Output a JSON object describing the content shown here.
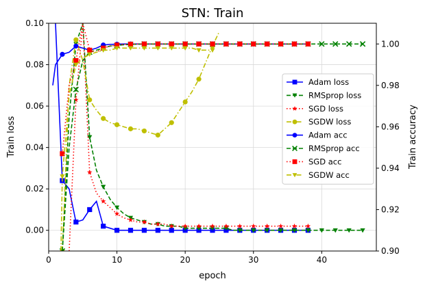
{
  "chart_data": {
    "type": "line",
    "title": "STN: Train",
    "xlabel": "epoch",
    "ylabel_left": "Train loss",
    "ylabel_right": "Train accuracy",
    "xlim": [
      0,
      48
    ],
    "ylim_left": [
      -0.01,
      0.1
    ],
    "ylim_right": [
      0.9,
      1.01
    ],
    "x_ticks": [
      0,
      10,
      20,
      30,
      40
    ],
    "y_left_ticks": [
      0.0,
      0.02,
      0.04,
      0.06,
      0.08,
      0.1
    ],
    "y_left_tick_labels": [
      "0.00",
      "0.02",
      "0.04",
      "0.06",
      "0.08",
      "0.10"
    ],
    "y_right_ticks": [
      0.9,
      0.92,
      0.94,
      0.96,
      0.98,
      1.0
    ],
    "y_right_tick_labels": [
      "0.90",
      "0.92",
      "0.94",
      "0.96",
      "0.98",
      "1.00"
    ],
    "grid": true,
    "legend_position": "right",
    "series": [
      {
        "name": "Adam loss",
        "axis": "left",
        "color": "#0000ff",
        "dash": "solid",
        "marker": "square",
        "marker_every": 2,
        "x": [
          1,
          2,
          3,
          4,
          5,
          6,
          7,
          8,
          9,
          10,
          11,
          12,
          13,
          14,
          15,
          16,
          17,
          18,
          19,
          20,
          21,
          22,
          23,
          24,
          25,
          26,
          27,
          28,
          29,
          30,
          31,
          32,
          33,
          34,
          35,
          36,
          37,
          38
        ],
        "y": [
          0.1,
          0.024,
          0.02,
          0.004,
          0.005,
          0.01,
          0.014,
          0.002,
          0.001,
          0.0,
          0.0,
          0.0,
          0.0,
          0.0,
          0.0,
          0.0,
          0.0,
          0.0,
          0.0,
          0.0,
          0.0,
          0.0,
          0.0,
          0.0,
          0.0,
          0.0,
          0.0,
          0.0,
          0.0,
          0.0,
          0.0,
          0.0,
          0.0,
          0.0,
          0.0,
          0.0,
          0.0,
          0.0
        ]
      },
      {
        "name": "RMSprop loss",
        "axis": "left",
        "color": "#008000",
        "dash": "dashed",
        "marker": "triangle-down",
        "marker_every": 2,
        "x": [
          2,
          3,
          4,
          5,
          6,
          7,
          8,
          9,
          10,
          11,
          12,
          13,
          14,
          15,
          16,
          17,
          18,
          19,
          20,
          21,
          22,
          23,
          24,
          25,
          26,
          27,
          28,
          29,
          30,
          31,
          32,
          33,
          34,
          35,
          36,
          37,
          38,
          39,
          40,
          41,
          42,
          43,
          44,
          45,
          46
        ],
        "y": [
          -0.01,
          0.055,
          0.09,
          0.1,
          0.045,
          0.029,
          0.021,
          0.015,
          0.011,
          0.008,
          0.006,
          0.005,
          0.004,
          0.003,
          0.003,
          0.002,
          0.002,
          0.002,
          0.001,
          0.001,
          0.001,
          0.001,
          0.001,
          0.001,
          0.001,
          0.0,
          0.0,
          0.0,
          0.0,
          0.0,
          0.0,
          0.0,
          0.0,
          0.0,
          0.0,
          0.0,
          0.0,
          0.0,
          0.0,
          0.0,
          0.0,
          0.0,
          0.0,
          0.0,
          0.0
        ]
      },
      {
        "name": "SGD loss",
        "axis": "left",
        "color": "#ff0000",
        "dash": "dotted",
        "marker": "star",
        "marker_every": 2,
        "x": [
          3,
          4,
          5,
          6,
          7,
          8,
          9,
          10,
          11,
          12,
          13,
          14,
          15,
          16,
          17,
          18,
          19,
          20,
          21,
          22,
          23,
          24,
          25,
          26,
          27,
          28,
          29,
          30,
          31,
          32,
          33,
          34,
          35,
          36,
          37,
          38
        ],
        "y": [
          -0.01,
          0.063,
          0.1,
          0.028,
          0.018,
          0.014,
          0.011,
          0.008,
          0.006,
          0.005,
          0.004,
          0.004,
          0.003,
          0.003,
          0.003,
          0.002,
          0.002,
          0.002,
          0.002,
          0.002,
          0.002,
          0.002,
          0.002,
          0.002,
          0.002,
          0.002,
          0.002,
          0.002,
          0.002,
          0.002,
          0.002,
          0.002,
          0.002,
          0.002,
          0.002,
          0.002
        ]
      },
      {
        "name": "SGDW loss",
        "axis": "left",
        "color": "#bfbf00",
        "dash": "dashdot",
        "marker": "circle",
        "marker_every": 2,
        "x": [
          2,
          3,
          4,
          5,
          6,
          7,
          8,
          9,
          10,
          11,
          12,
          13,
          14,
          15,
          16,
          17,
          18,
          19,
          20,
          21,
          22,
          23,
          24,
          25
        ],
        "y": [
          -0.01,
          0.07,
          0.092,
          0.082,
          0.063,
          0.058,
          0.054,
          0.052,
          0.051,
          0.05,
          0.049,
          0.049,
          0.048,
          0.047,
          0.046,
          0.049,
          0.052,
          0.057,
          0.062,
          0.067,
          0.073,
          0.081,
          0.089,
          0.096
        ]
      },
      {
        "name": "Adam acc",
        "axis": "right",
        "color": "#0000ff",
        "dash": "solid",
        "marker": "circle",
        "marker_every": 2,
        "x": [
          0.6,
          1,
          2,
          3,
          4,
          5,
          6,
          7,
          8,
          9,
          10,
          11,
          12,
          13,
          14,
          15,
          16,
          17,
          18,
          19,
          20,
          21,
          22,
          23,
          24,
          25,
          26,
          27,
          28,
          29,
          30,
          31,
          32,
          33,
          34,
          35,
          36,
          37,
          38
        ],
        "y": [
          0.98,
          0.99,
          0.995,
          0.996,
          0.999,
          0.998,
          0.997,
          0.998,
          0.9995,
          0.9998,
          0.9999,
          1.0,
          1.0,
          1.0,
          1.0,
          1.0,
          1.0,
          1.0,
          1.0,
          1.0,
          1.0,
          1.0,
          1.0,
          1.0,
          1.0,
          1.0,
          1.0,
          1.0,
          1.0,
          1.0,
          1.0,
          1.0,
          1.0,
          1.0,
          1.0,
          1.0,
          1.0,
          1.0,
          1.0
        ]
      },
      {
        "name": "RMSprop acc",
        "axis": "right",
        "color": "#008000",
        "dash": "dashed",
        "marker": "x",
        "marker_every": 2,
        "x": [
          2,
          3,
          4,
          5,
          6,
          7,
          8,
          9,
          10,
          11,
          12,
          13,
          14,
          15,
          16,
          17,
          18,
          19,
          20,
          21,
          22,
          23,
          24,
          25,
          26,
          27,
          28,
          29,
          30,
          31,
          32,
          33,
          34,
          35,
          36,
          37,
          38,
          39,
          40,
          41,
          42,
          43,
          44,
          45,
          46
        ],
        "y": [
          0.9,
          0.95,
          0.978,
          0.992,
          0.996,
          0.997,
          0.998,
          0.999,
          0.9993,
          0.9996,
          0.9998,
          0.9999,
          1.0,
          1.0,
          1.0,
          1.0,
          1.0,
          1.0,
          1.0,
          1.0,
          1.0,
          1.0,
          1.0,
          1.0,
          1.0,
          1.0,
          1.0,
          1.0,
          1.0,
          1.0,
          1.0,
          1.0,
          1.0,
          1.0,
          1.0,
          1.0,
          1.0,
          1.0,
          1.0,
          1.0,
          1.0,
          1.0,
          1.0,
          1.0,
          1.0
        ]
      },
      {
        "name": "SGD acc",
        "axis": "right",
        "color": "#ff0000",
        "dash": "dotted",
        "marker": "square",
        "marker_every": 2,
        "x": [
          2,
          3,
          4,
          5,
          6,
          7,
          8,
          9,
          10,
          11,
          12,
          13,
          14,
          15,
          16,
          17,
          18,
          19,
          20,
          21,
          22,
          23,
          24,
          25,
          26,
          27,
          28,
          29,
          30,
          31,
          32,
          33,
          34,
          35,
          36,
          37,
          38
        ],
        "y": [
          0.947,
          0.98,
          0.992,
          1.01,
          0.997,
          0.996,
          0.998,
          0.999,
          0.9995,
          0.9998,
          0.9999,
          1.0,
          1.0,
          1.0,
          1.0,
          1.0,
          1.0,
          1.0,
          1.0,
          1.0,
          1.0,
          1.0,
          1.0,
          1.0,
          1.0,
          1.0,
          1.0,
          1.0,
          1.0,
          1.0,
          1.0,
          1.0,
          1.0,
          1.0,
          1.0,
          1.0,
          1.0
        ]
      },
      {
        "name": "SGDW acc",
        "axis": "right",
        "color": "#bfbf00",
        "dash": "dashdot",
        "marker": "triangle-down",
        "marker_every": 2,
        "x": [
          1.8,
          2,
          3,
          4,
          5,
          6,
          7,
          8,
          9,
          10,
          11,
          12,
          13,
          14,
          15,
          16,
          17,
          18,
          19,
          20,
          21,
          22,
          23,
          24
        ],
        "y": [
          0.9,
          0.936,
          0.975,
          0.99,
          0.993,
          0.995,
          0.996,
          0.997,
          0.997,
          0.998,
          0.998,
          0.998,
          0.998,
          0.998,
          0.998,
          0.998,
          0.998,
          0.998,
          0.998,
          0.998,
          0.998,
          0.997,
          0.997,
          0.997
        ]
      }
    ]
  }
}
